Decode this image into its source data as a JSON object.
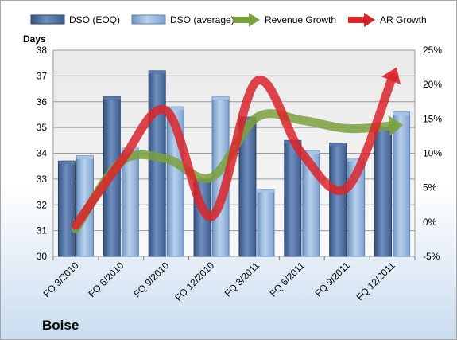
{
  "chart_data": {
    "type": "bar",
    "title": "Boise",
    "xlabel": "",
    "categories": [
      "FQ 3/2010",
      "FQ 6/2010",
      "FQ 9/2010",
      "FQ 12/2010",
      "FQ 3/2011",
      "FQ 6/2011",
      "FQ 9/2011",
      "FQ 12/2011"
    ],
    "y_left": {
      "label": "Days",
      "min": 30,
      "max": 38,
      "ticks": [
        30,
        31,
        32,
        33,
        34,
        35,
        36,
        37,
        38
      ]
    },
    "y_right": {
      "label": "",
      "min": -5,
      "max": 25,
      "ticks": [
        "-5%",
        "0%",
        "5%",
        "10%",
        "15%",
        "20%",
        "25%"
      ]
    },
    "grid": true,
    "legend_position": "top",
    "series": [
      {
        "name": "DSO (EOQ)",
        "kind": "bar",
        "axis": "left",
        "color": "#4f6fa3",
        "values": [
          33.7,
          36.2,
          37.2,
          33.0,
          35.4,
          34.5,
          34.4,
          35.0
        ]
      },
      {
        "name": "DSO (average)",
        "kind": "bar",
        "axis": "left",
        "color": "#8fb3dc",
        "values": [
          33.9,
          34.2,
          35.8,
          36.2,
          32.6,
          34.1,
          33.8,
          35.6
        ]
      },
      {
        "name": "Revenue Growth",
        "kind": "line-arrow",
        "axis": "right",
        "color": "#7aa03f",
        "values": [
          -1,
          8.8,
          9.2,
          6.5,
          15.2,
          14.8,
          13.6,
          14.0
        ]
      },
      {
        "name": "AR Growth",
        "kind": "line-arrow",
        "axis": "right",
        "color": "#d9252a",
        "values": [
          -0.5,
          8.8,
          16.2,
          0.8,
          20.5,
          10.0,
          5.0,
          21.0
        ]
      }
    ]
  }
}
